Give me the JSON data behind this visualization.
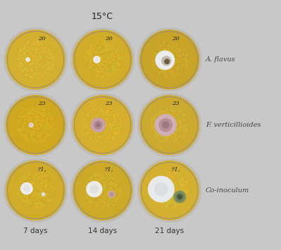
{
  "title": "15°C",
  "row_labels": [
    "A. flavus",
    "F. verticillioides",
    "Co-inoculum"
  ],
  "col_labels": [
    "7 days",
    "14 days",
    "21 days"
  ],
  "plate_numbers": [
    [
      "20",
      "20",
      "20"
    ],
    [
      "23",
      "23",
      "23"
    ],
    [
      "71,",
      "71,",
      "71,"
    ]
  ],
  "background_color": "#c8c8c8",
  "title_fontsize": 9,
  "col_label_fontsize": 7.5,
  "row_label_fontsize": 7,
  "figsize": [
    3.99,
    3.55
  ],
  "dpi": 100,
  "cell_bg": "#b0b0b0",
  "plate_rim_color": "#c0bdb8",
  "plate_colors": [
    [
      "#d4b030",
      "#d0ac28",
      "#c8a428"
    ],
    [
      "#d0a820",
      "#d4ae2c",
      "#ccaa30"
    ],
    [
      "#d0ac28",
      "#ccaa28",
      "#d4b030"
    ]
  ],
  "num_color": "#222222",
  "label_color": "#333333",
  "row_label_color": "#444444"
}
